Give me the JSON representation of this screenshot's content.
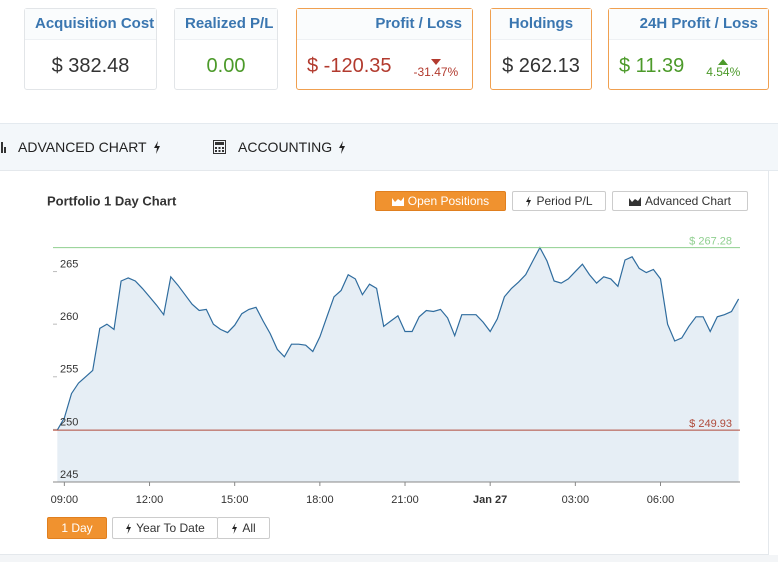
{
  "cards": [
    {
      "title": "Acquisition Cost",
      "value": "$ 382.48"
    },
    {
      "title": "Realized P/L",
      "value": "0.00"
    },
    {
      "title": "Profit / Loss",
      "value": "$ -120.35",
      "change": "-31.47%"
    },
    {
      "title": "Holdings",
      "value": "$ 262.13"
    },
    {
      "title": "24H Profit / Loss",
      "value": "$ 11.39",
      "change": "4.54%"
    }
  ],
  "tabs": [
    "ADVANCED CHART",
    "ACCOUNTING"
  ],
  "chart_buttons": [
    "Open Positions",
    "Period P/L",
    "Advanced Chart"
  ],
  "range_buttons": [
    "1 Day",
    "Year To Date",
    "All"
  ],
  "chart_data": {
    "type": "area",
    "title": "Portfolio 1 Day Chart",
    "color": "#2f6c9e",
    "x": [
      8.75,
      9,
      9.25,
      9.5,
      9.75,
      10,
      10.25,
      10.5,
      10.75,
      11,
      11.25,
      11.5,
      11.75,
      12,
      12.25,
      12.5,
      12.75,
      13,
      13.25,
      13.5,
      13.75,
      14,
      14.25,
      14.5,
      14.75,
      15,
      15.25,
      15.5,
      15.75,
      16,
      16.25,
      16.5,
      16.75,
      17,
      17.25,
      17.5,
      17.75,
      18,
      18.25,
      18.5,
      18.75,
      19,
      19.25,
      19.5,
      19.75,
      20,
      20.25,
      20.5,
      20.75,
      21,
      21.25,
      21.5,
      21.75,
      22,
      22.25,
      22.5,
      22.75,
      23,
      23.25,
      23.5,
      23.75,
      24,
      24.25,
      24.5,
      24.75,
      25,
      25.25,
      25.5,
      25.75,
      26,
      26.25,
      26.5,
      26.75,
      27,
      27.25,
      27.5,
      27.75,
      28,
      28.25,
      28.5,
      28.75,
      29,
      29.25,
      29.5,
      29.75,
      30,
      30.25,
      30.5,
      30.75,
      31,
      31.25,
      31.5,
      31.75,
      32,
      32.25,
      32.5,
      32.75
    ],
    "values": [
      249.93,
      251.1,
      253.4,
      254.4,
      255.0,
      255.6,
      259.6,
      260.0,
      259.5,
      264.1,
      264.4,
      264.1,
      263.4,
      262.6,
      261.8,
      260.9,
      264.5,
      263.7,
      262.8,
      261.9,
      261.3,
      261.4,
      260.0,
      259.5,
      259.2,
      259.9,
      261.0,
      261.4,
      261.6,
      260.3,
      259.1,
      257.6,
      256.9,
      258.1,
      258.1,
      258.0,
      257.4,
      258.8,
      260.7,
      262.6,
      263.2,
      264.7,
      264.3,
      262.8,
      263.8,
      263.4,
      259.8,
      260.3,
      260.8,
      259.3,
      259.3,
      260.7,
      261.3,
      261.2,
      261.4,
      260.6,
      258.9,
      260.9,
      260.9,
      260.9,
      260.2,
      259.3,
      260.5,
      262.6,
      263.4,
      264.0,
      264.7,
      266.0,
      267.28,
      266.0,
      264.1,
      263.9,
      264.3,
      265.0,
      265.7,
      264.7,
      263.9,
      264.5,
      264.3,
      263.6,
      266.1,
      266.4,
      265.3,
      264.9,
      265.2,
      264.3,
      260.0,
      258.4,
      258.7,
      259.8,
      260.7,
      260.7,
      259.3,
      260.7,
      260.9,
      261.2,
      262.4
    ],
    "xlim": [
      8.6,
      32.8
    ],
    "xticks": [
      {
        "value": 9,
        "label": "09:00"
      },
      {
        "value": 12,
        "label": "12:00"
      },
      {
        "value": 15,
        "label": "15:00"
      },
      {
        "value": 18,
        "label": "18:00"
      },
      {
        "value": 21,
        "label": "21:00"
      },
      {
        "value": 24,
        "label": "Jan 27"
      },
      {
        "value": 27,
        "label": "03:00"
      },
      {
        "value": 30,
        "label": "06:00"
      }
    ],
    "ylim": [
      245,
      268
    ],
    "yticks": [
      245,
      250,
      255,
      260,
      265
    ],
    "reference_lines": [
      {
        "value": 267.28,
        "label": "$ 267.28",
        "color": "#8fcf8f"
      },
      {
        "value": 249.93,
        "label": "$ 249.93",
        "color": "#b04a3a"
      }
    ]
  }
}
